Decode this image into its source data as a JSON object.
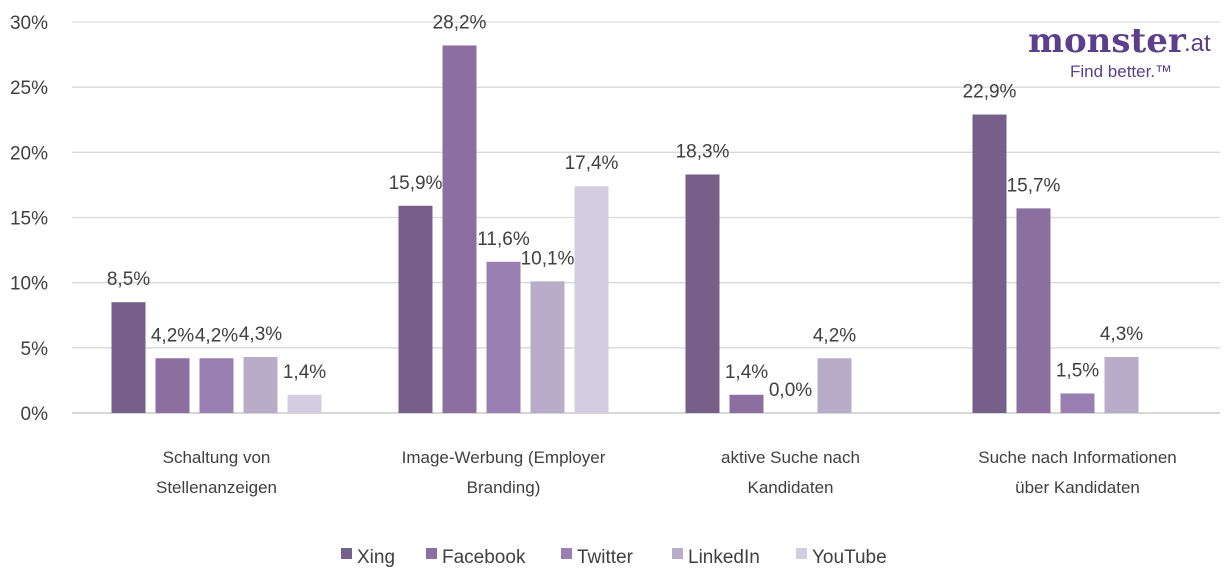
{
  "logo": {
    "word": "monster",
    "suffix": ".at",
    "tagline": "Find better.™"
  },
  "chart_data": {
    "type": "bar",
    "categories": [
      [
        "Schaltung von",
        "Stellenanzeigen"
      ],
      [
        "Image-Werbung (Employer",
        "Branding)"
      ],
      [
        "aktive Suche nach",
        "Kandidaten"
      ],
      [
        "Suche nach Informationen",
        "über Kandidaten"
      ]
    ],
    "series": [
      {
        "name": "Xing",
        "color": "#76608a",
        "values": [
          8.5,
          15.9,
          18.3,
          22.9
        ],
        "labels": [
          "8,5%",
          "15,9%",
          "18,3%",
          "22,9%"
        ]
      },
      {
        "name": "Facebook",
        "color": "#8a6fa0",
        "values": [
          4.2,
          28.2,
          1.4,
          15.7
        ],
        "labels": [
          "4,2%",
          "28,2%",
          "1,4%",
          "15,7%"
        ]
      },
      {
        "name": "Twitter",
        "color": "#9a7fb3",
        "values": [
          4.2,
          11.6,
          0.0,
          1.5
        ],
        "labels": [
          "4,2%",
          "11,6%",
          "0,0%",
          "1,5%"
        ]
      },
      {
        "name": "LinkedIn",
        "color": "#b8acc8",
        "values": [
          4.3,
          10.1,
          4.2,
          4.3
        ],
        "labels": [
          "4,3%",
          "10,1%",
          "4,2%",
          "4,3%"
        ]
      },
      {
        "name": "YouTube",
        "color": "#d3cddf",
        "values": [
          1.4,
          17.4,
          null,
          null
        ],
        "labels": [
          "1,4%",
          "17,4%",
          null,
          null
        ]
      }
    ],
    "yticks": [
      "0%",
      "5%",
      "10%",
      "15%",
      "20%",
      "25%",
      "30%"
    ],
    "ylim": [
      0,
      30
    ],
    "grid": true,
    "legend_position": "bottom"
  }
}
